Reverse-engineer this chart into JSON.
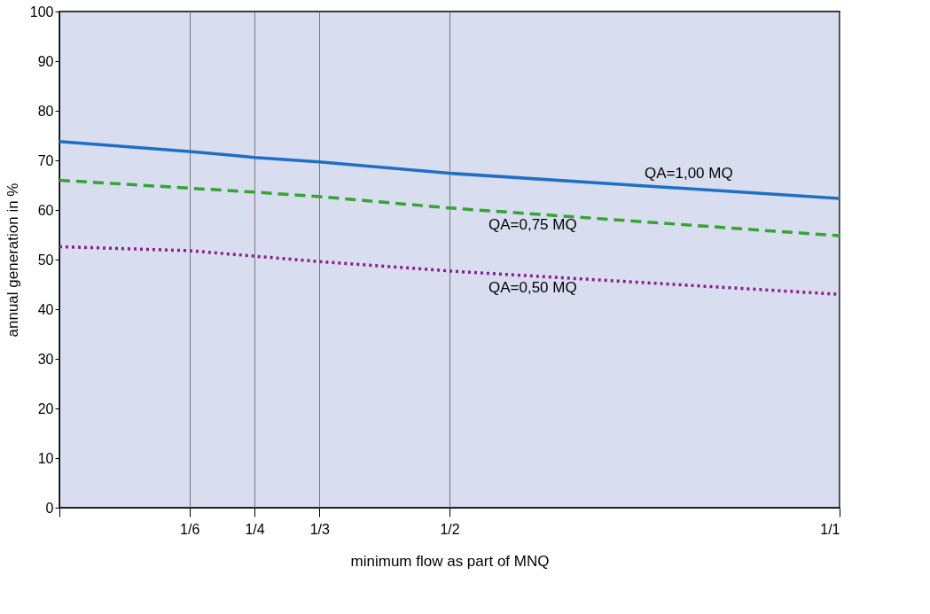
{
  "chart_data": {
    "type": "line",
    "xlabel": "minimum flow as part of MNQ",
    "ylabel": "annual generation in %",
    "x": [
      0,
      0.1667,
      0.25,
      0.3333,
      0.5,
      1
    ],
    "series": [
      {
        "name": "QA=1,00 MQ",
        "color": "#1f6fc5",
        "line_style": "solid",
        "values": [
          73.8,
          71.8,
          70.6,
          69.7,
          67.4,
          62.3
        ]
      },
      {
        "name": "QA=0,75 MQ",
        "color": "#33a532",
        "line_style": "dashed",
        "values": [
          66.0,
          64.4,
          63.6,
          62.7,
          60.4,
          54.8
        ]
      },
      {
        "name": "QA=0,50 MQ",
        "color": "#8b1e8b",
        "line_style": "dotted",
        "values": [
          52.6,
          51.8,
          50.7,
          49.6,
          47.7,
          43.0
        ]
      }
    ],
    "xlim": [
      0,
      1
    ],
    "xticks": [
      {
        "value": 0,
        "label": null
      },
      {
        "value": 0.1667,
        "label": "1/6"
      },
      {
        "value": 0.25,
        "label": "1/4"
      },
      {
        "value": 0.3333,
        "label": "1/3"
      },
      {
        "value": 0.5,
        "label": "1/2"
      },
      {
        "value": 1,
        "label": "1/1"
      }
    ],
    "ylim": [
      0,
      100
    ],
    "yticks": [
      0,
      10,
      20,
      30,
      40,
      50,
      60,
      70,
      80,
      90,
      100
    ],
    "grid": "x",
    "legend": false,
    "marker": "none"
  }
}
